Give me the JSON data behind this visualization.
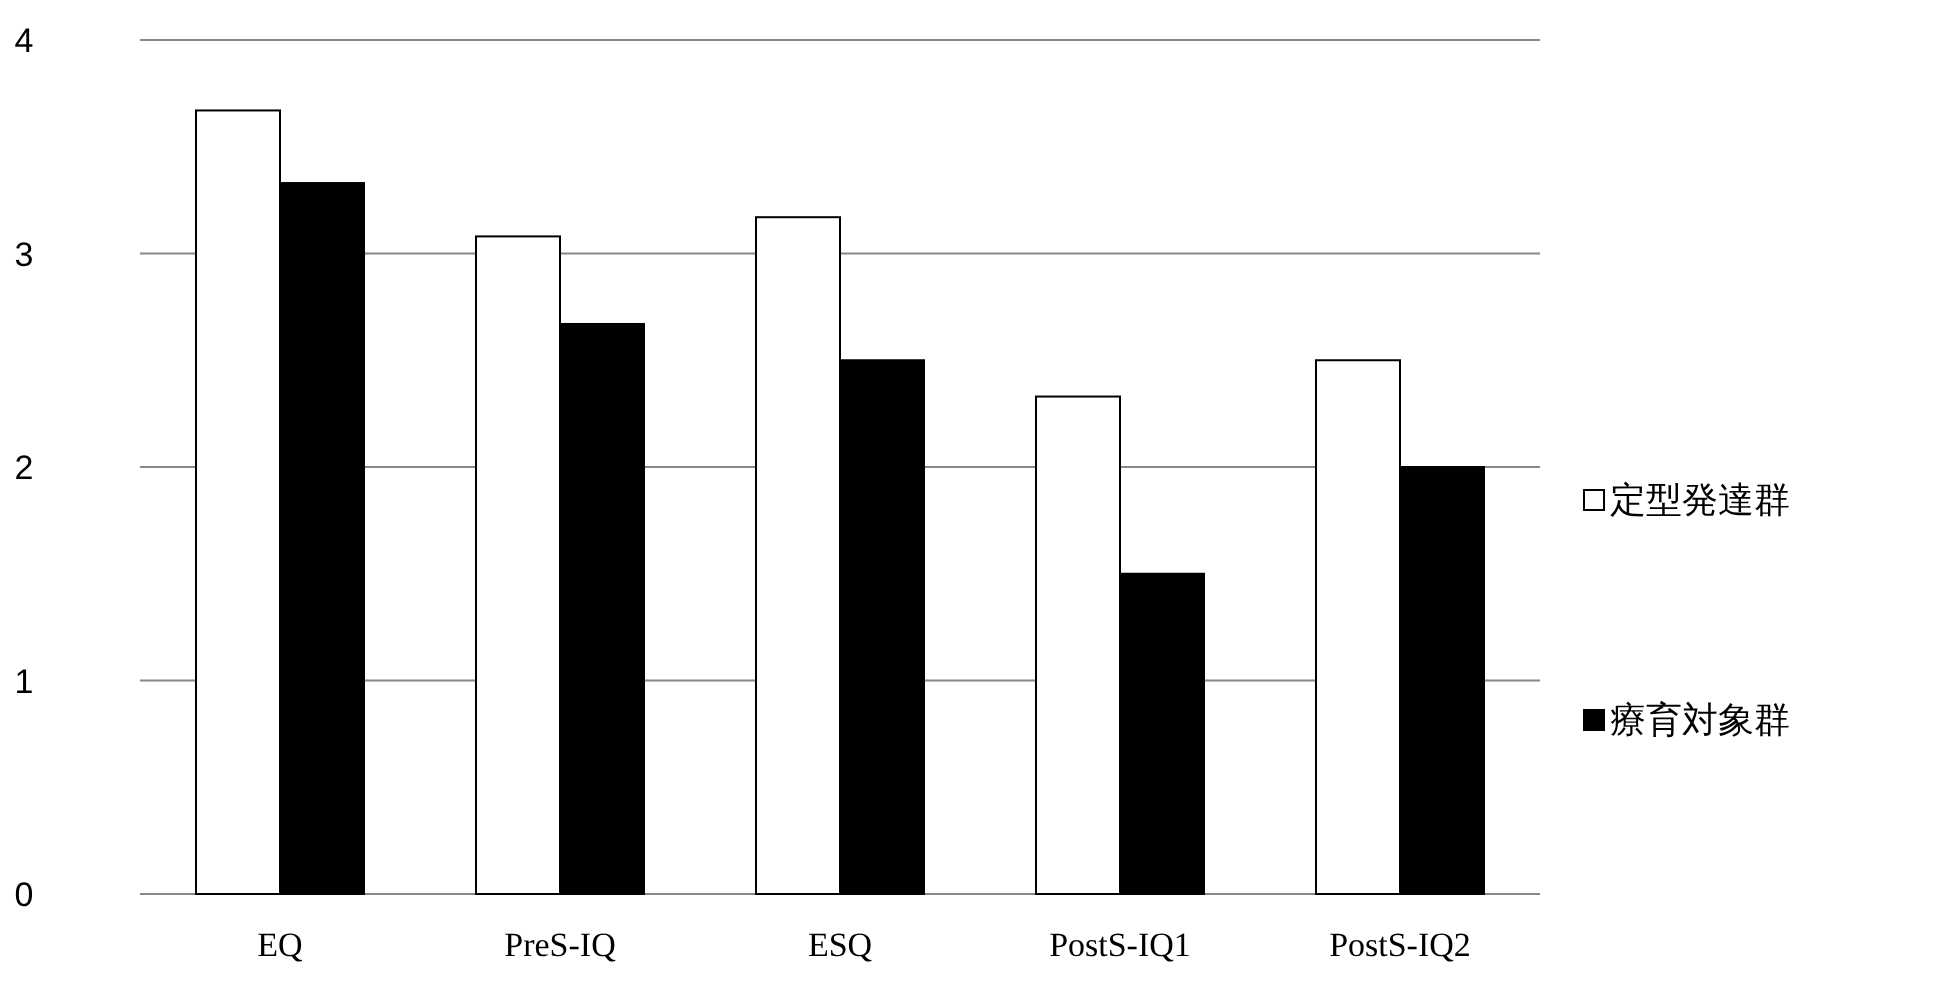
{
  "chart_data": {
    "type": "bar",
    "categories": [
      "EQ",
      "PreS-IQ",
      "ESQ",
      "PostS-IQ1",
      "PostS-IQ2"
    ],
    "series": [
      {
        "name": "定型発達群",
        "color": "#ffffff",
        "values": [
          3.67,
          3.08,
          3.17,
          2.33,
          2.5
        ]
      },
      {
        "name": "療育対象群",
        "color": "#000000",
        "values": [
          3.33,
          2.67,
          2.5,
          1.5,
          2.0
        ]
      }
    ],
    "ylim": [
      0,
      4
    ],
    "yticks": [
      0,
      1,
      2,
      3,
      4
    ],
    "grid": "y",
    "legend": "right"
  }
}
